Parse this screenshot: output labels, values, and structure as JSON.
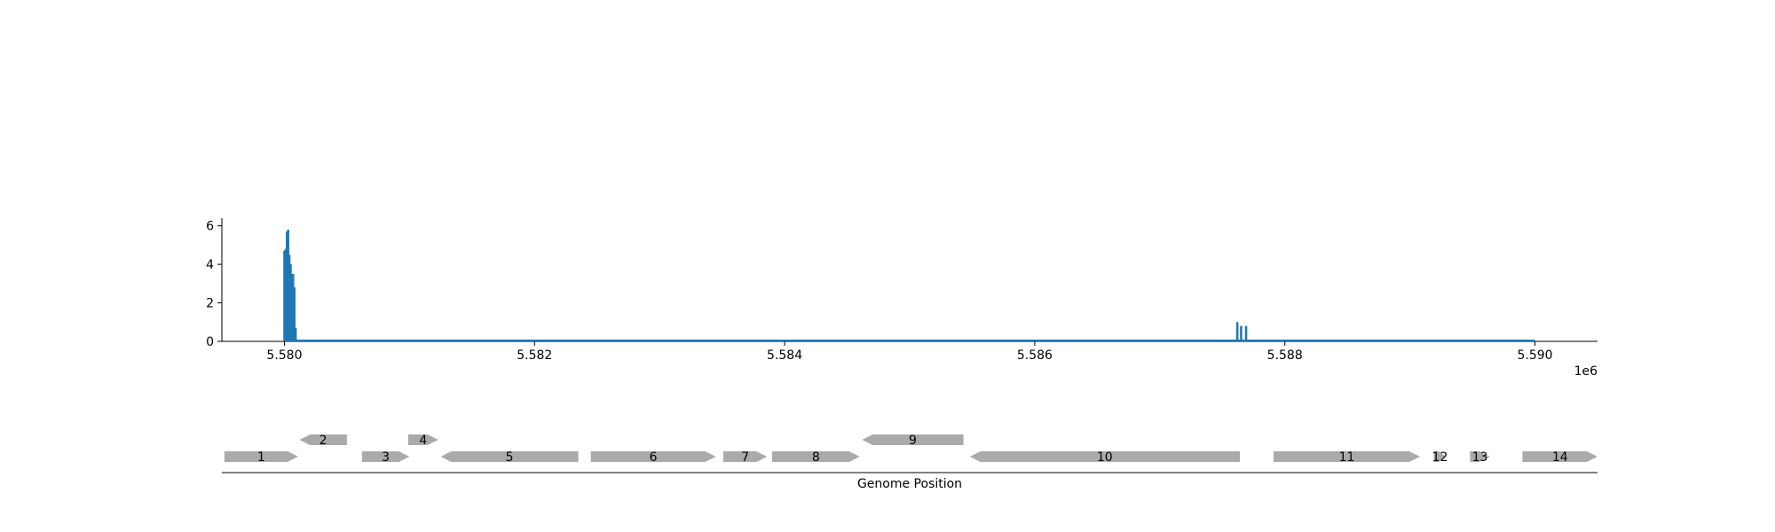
{
  "colors": {
    "coverage": "#1f77b4",
    "gene": "#aaaaaa",
    "axis": "#000000"
  },
  "chart_data": {
    "type": "bar",
    "x_range": [
      5579500,
      5590500
    ],
    "y_range": [
      0,
      6.4
    ],
    "x_ticks": [
      {
        "value": 5580000,
        "label": "5.580"
      },
      {
        "value": 5582000,
        "label": "5.582"
      },
      {
        "value": 5584000,
        "label": "5.584"
      },
      {
        "value": 5586000,
        "label": "5.586"
      },
      {
        "value": 5588000,
        "label": "5.588"
      },
      {
        "value": 5590000,
        "label": "5.590"
      }
    ],
    "x_offset_label": "1e6",
    "y_ticks": [
      {
        "value": 0,
        "label": "0"
      },
      {
        "value": 2,
        "label": "2"
      },
      {
        "value": 4,
        "label": "4"
      },
      {
        "value": 6,
        "label": "6"
      }
    ],
    "coverage_line": {
      "x": [
        5580000,
        5590000
      ],
      "y": [
        0,
        0
      ]
    },
    "coverage_points": [
      {
        "x": 5580000,
        "y": 4.7
      },
      {
        "x": 5580010,
        "y": 4.8
      },
      {
        "x": 5580020,
        "y": 5.7
      },
      {
        "x": 5580030,
        "y": 5.8
      },
      {
        "x": 5580040,
        "y": 4.5
      },
      {
        "x": 5580050,
        "y": 4.0
      },
      {
        "x": 5580060,
        "y": 3.5
      },
      {
        "x": 5580070,
        "y": 3.5
      },
      {
        "x": 5580080,
        "y": 2.8
      },
      {
        "x": 5580090,
        "y": 0.7
      },
      {
        "x": 5587620,
        "y": 1.0
      },
      {
        "x": 5587650,
        "y": 0.8
      },
      {
        "x": 5587690,
        "y": 0.8
      }
    ],
    "genes": [
      {
        "label": "1",
        "start": 5579520,
        "end": 5580110,
        "strand": 1,
        "row": 0
      },
      {
        "label": "2",
        "start": 5580120,
        "end": 5580500,
        "strand": -1,
        "row": 1
      },
      {
        "label": "3",
        "start": 5580620,
        "end": 5581000,
        "strand": 1,
        "row": 0
      },
      {
        "label": "4",
        "start": 5580990,
        "end": 5581230,
        "strand": 1,
        "row": 1
      },
      {
        "label": "5",
        "start": 5581250,
        "end": 5582350,
        "strand": -1,
        "row": 0
      },
      {
        "label": "6",
        "start": 5582450,
        "end": 5583450,
        "strand": 1,
        "row": 0
      },
      {
        "label": "7",
        "start": 5583510,
        "end": 5583860,
        "strand": 1,
        "row": 0
      },
      {
        "label": "8",
        "start": 5583900,
        "end": 5584600,
        "strand": 1,
        "row": 0
      },
      {
        "label": "9",
        "start": 5584620,
        "end": 5585430,
        "strand": -1,
        "row": 1
      },
      {
        "label": "10",
        "start": 5585480,
        "end": 5587640,
        "strand": -1,
        "row": 0
      },
      {
        "label": "11",
        "start": 5587910,
        "end": 5589080,
        "strand": 1,
        "row": 0
      },
      {
        "label": "12",
        "start": 5589190,
        "end": 5589290,
        "strand": 1,
        "row": 0
      },
      {
        "label": "13",
        "start": 5589480,
        "end": 5589640,
        "strand": 1,
        "row": 0
      },
      {
        "label": "14",
        "start": 5589900,
        "end": 5590500,
        "strand": 1,
        "row": 0
      }
    ],
    "gene_axis_title": "Genome Position"
  }
}
